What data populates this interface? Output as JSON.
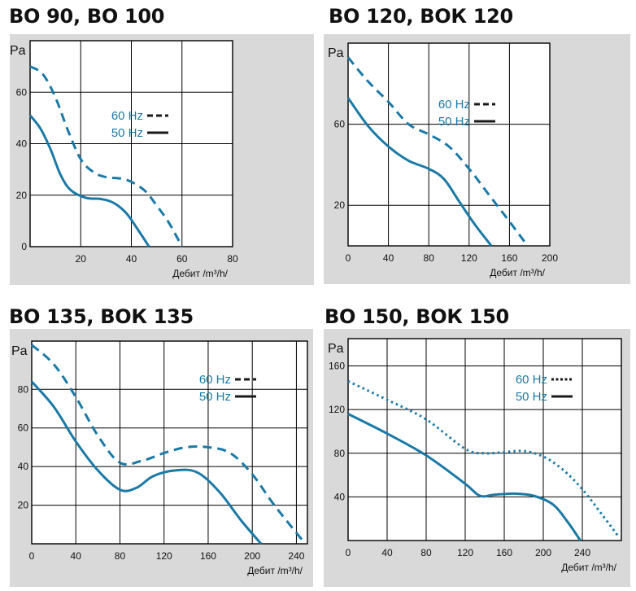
{
  "colors": {
    "curve": "#1b79a6",
    "legend_text": "#1b79a6",
    "legend_line": "#1a1a1a",
    "plot_bg": "#ffffff",
    "panel_bg": "#d9d9d9",
    "grid": "#000000"
  },
  "chart_data": [
    {
      "type": "line",
      "title": "ВО 90, ВО 100",
      "ylabel": "Pa",
      "xlabel": "Дебит /m³/h/",
      "xlim": [
        0,
        80
      ],
      "ylim": [
        0,
        80
      ],
      "x_ticks": [
        20,
        40,
        60,
        80
      ],
      "y_ticks": [
        0,
        20,
        40,
        60
      ],
      "legend_position": "top-right",
      "series": [
        {
          "name": "60 Hz",
          "style": "dashed",
          "points": [
            [
              0,
              70
            ],
            [
              5,
              67
            ],
            [
              10,
              58
            ],
            [
              15,
              45
            ],
            [
              20,
              34
            ],
            [
              25,
              29
            ],
            [
              30,
              27
            ],
            [
              38,
              26
            ],
            [
              45,
              22
            ],
            [
              50,
              16
            ],
            [
              55,
              9
            ],
            [
              60,
              0
            ]
          ]
        },
        {
          "name": "50 Hz",
          "style": "solid",
          "points": [
            [
              0,
              51
            ],
            [
              4,
              46
            ],
            [
              8,
              38
            ],
            [
              12,
              28
            ],
            [
              16,
              22
            ],
            [
              22,
              19
            ],
            [
              28,
              18.5
            ],
            [
              33,
              17
            ],
            [
              38,
              13
            ],
            [
              43,
              6
            ],
            [
              47,
              0
            ]
          ]
        }
      ]
    },
    {
      "type": "line",
      "title": "ВО 120, ВОК 120",
      "ylabel": "Pa",
      "xlabel": "Дебит /m³/h/",
      "xlim": [
        0,
        200
      ],
      "ylim": [
        0,
        100
      ],
      "x_ticks": [
        0,
        40,
        80,
        120,
        160,
        200
      ],
      "y_ticks": [
        20,
        60
      ],
      "legend_position": "top-right",
      "series": [
        {
          "name": "60 Hz",
          "style": "dashed",
          "points": [
            [
              0,
              93
            ],
            [
              20,
              81
            ],
            [
              40,
              71
            ],
            [
              60,
              60
            ],
            [
              80,
              55
            ],
            [
              100,
              49
            ],
            [
              120,
              38
            ],
            [
              140,
              25
            ],
            [
              160,
              12
            ],
            [
              178,
              0
            ]
          ]
        },
        {
          "name": "50 Hz",
          "style": "solid",
          "points": [
            [
              0,
              73
            ],
            [
              20,
              59
            ],
            [
              40,
              49
            ],
            [
              60,
              42
            ],
            [
              80,
              38
            ],
            [
              95,
              33
            ],
            [
              110,
              22
            ],
            [
              125,
              11
            ],
            [
              142,
              0
            ]
          ]
        }
      ]
    },
    {
      "type": "line",
      "title": "ВО 135, ВОК 135",
      "ylabel": "Pa",
      "xlabel": "Дебит /m³/h/",
      "xlim": [
        0,
        250
      ],
      "ylim": [
        0,
        105
      ],
      "x_ticks": [
        0,
        40,
        80,
        120,
        160,
        200,
        240
      ],
      "y_ticks": [
        20,
        40,
        60,
        80
      ],
      "legend_position": "top-right",
      "series": [
        {
          "name": "60 Hz",
          "style": "dashed",
          "points": [
            [
              0,
              103
            ],
            [
              20,
              93
            ],
            [
              40,
              76
            ],
            [
              60,
              56
            ],
            [
              80,
              42
            ],
            [
              100,
              43
            ],
            [
              120,
              47
            ],
            [
              140,
              50
            ],
            [
              160,
              50
            ],
            [
              180,
              47
            ],
            [
              200,
              36
            ],
            [
              220,
              20
            ],
            [
              248,
              0
            ]
          ]
        },
        {
          "name": "50 Hz",
          "style": "solid",
          "points": [
            [
              0,
              84
            ],
            [
              20,
              71
            ],
            [
              40,
              53
            ],
            [
              60,
              38
            ],
            [
              80,
              28
            ],
            [
              95,
              29
            ],
            [
              110,
              35
            ],
            [
              130,
              38
            ],
            [
              150,
              37
            ],
            [
              170,
              27
            ],
            [
              190,
              12
            ],
            [
              208,
              0
            ]
          ]
        }
      ]
    },
    {
      "type": "line",
      "title": "ВО 150, ВОК 150",
      "ylabel": "Pa",
      "xlabel": "Дебит /m³/h/",
      "xlim": [
        0,
        280
      ],
      "ylim": [
        0,
        185
      ],
      "x_ticks": [
        0,
        40,
        80,
        120,
        160,
        200,
        240
      ],
      "y_ticks": [
        40,
        80,
        120,
        160
      ],
      "legend_position": "top-right",
      "series": [
        {
          "name": "60 Hz",
          "style": "dotted",
          "points": [
            [
              0,
              146
            ],
            [
              40,
              129
            ],
            [
              80,
              111
            ],
            [
              120,
              84
            ],
            [
              140,
              80
            ],
            [
              160,
              81
            ],
            [
              180,
              82
            ],
            [
              200,
              77
            ],
            [
              220,
              65
            ],
            [
              240,
              47
            ],
            [
              260,
              24
            ],
            [
              276,
              5
            ]
          ]
        },
        {
          "name": "50 Hz",
          "style": "solid",
          "points": [
            [
              0,
              116
            ],
            [
              40,
              98
            ],
            [
              80,
              78
            ],
            [
              120,
              52
            ],
            [
              135,
              41
            ],
            [
              150,
              42
            ],
            [
              170,
              43
            ],
            [
              190,
              41
            ],
            [
              210,
              33
            ],
            [
              225,
              17
            ],
            [
              238,
              0
            ]
          ]
        }
      ]
    }
  ]
}
